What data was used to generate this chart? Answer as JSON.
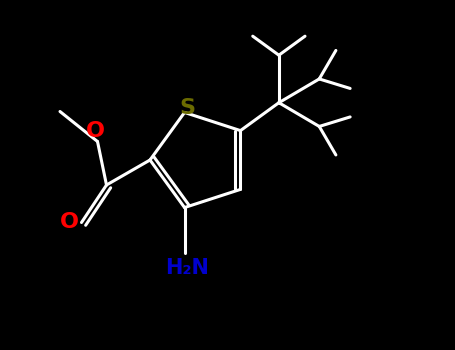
{
  "background_color": "#000000",
  "atom_colors": {
    "S": "#6b6b00",
    "O": "#ff0000",
    "N": "#0000cd",
    "C": "#ffffff",
    "H": "#ffffff"
  },
  "line_color": "#ffffff",
  "bond_width": 2.2,
  "figsize": [
    4.55,
    3.5
  ],
  "dpi": 100
}
